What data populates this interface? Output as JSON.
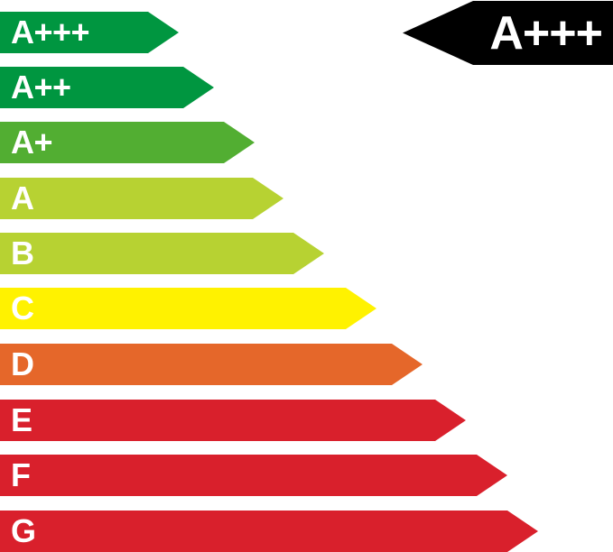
{
  "scale": {
    "bands": [
      {
        "label": "A+++",
        "color": "#009640"
      },
      {
        "label": "A++",
        "color": "#009640"
      },
      {
        "label": "A+",
        "color": "#52ae32"
      },
      {
        "label": "A",
        "color": "#b7d232"
      },
      {
        "label": "B",
        "color": "#b7d232"
      },
      {
        "label": "C",
        "color": "#fff200"
      },
      {
        "label": "D",
        "color": "#e5672a"
      },
      {
        "label": "E",
        "color": "#d9202c"
      },
      {
        "label": "F",
        "color": "#d9202c"
      },
      {
        "label": "G",
        "color": "#d9202c"
      }
    ]
  },
  "rating": {
    "label": "A+++",
    "color": "#000000"
  }
}
